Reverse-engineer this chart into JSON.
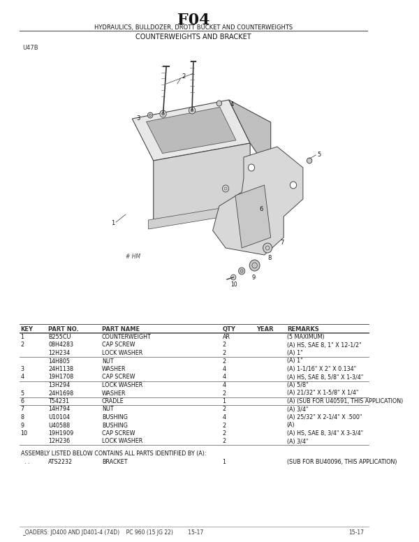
{
  "title": "F04",
  "subtitle": "HYDRAULICS, BULLDOZER, DROTT BUCKET AND COUNTERWEIGHTS",
  "section_title": "COUNTERWEIGHTS AND BRACKET",
  "figure_label": "U47B",
  "background_color": "#ffffff",
  "table_header": [
    "KEY",
    "PART NO.",
    "PART NAME",
    "QTY",
    "YEAR",
    "REMARKS"
  ],
  "table_rows": [
    [
      "1",
      "B255CU",
      "COUNTERWEIGHT",
      "AR",
      "",
      "(5 MAXIMUM)"
    ],
    [
      "2",
      "08H4283",
      "CAP SCREW",
      "2",
      "",
      "(A) HS, SAE 8, 1\" X 12-1/2\""
    ],
    [
      "",
      "12H234",
      "LOCK WASHER",
      "2",
      "",
      "(A) 1\""
    ],
    [
      "",
      "14H805",
      "NUT",
      "2",
      "",
      "(A) 1\""
    ],
    [
      "3",
      "24H1138",
      "WASHER",
      "4",
      "",
      "(A) 1-1/16\" X 2\" X 0.134\""
    ],
    [
      "4",
      "19H1708",
      "CAP SCREW",
      "4",
      "",
      "(A) HS, SAE 8, 5/8\" X 1-3/4\""
    ],
    [
      "",
      "13H294",
      "LOCK WASHER",
      "4",
      "",
      "(A) 5/8\""
    ],
    [
      "5",
      "24H1698",
      "WASHER",
      "2",
      "",
      "(A) 21/32\" X 1-5/8\" X 1/4\""
    ],
    [
      "6",
      "T54231",
      "CRADLE",
      "1",
      "",
      "(A) (SUB FOR U40591, THIS APPLICATION)"
    ],
    [
      "7",
      "14H794",
      "NUT",
      "2",
      "",
      "(A) 3/4\""
    ],
    [
      "8",
      "U10104",
      "BUSHING",
      "4",
      "",
      "(A) 25/32\" X 2-1/4\" X .500\""
    ],
    [
      "9",
      "U40588",
      "BUSHING",
      "2",
      "",
      "(A)"
    ],
    [
      "10",
      "19H1909",
      "CAP SCREW",
      "2",
      "",
      "(A) HS, SAE 8, 3/4\" X 3-3/4\""
    ],
    [
      "",
      "12H236",
      "LOCK WASHER",
      "2",
      "",
      "(A) 3/4\""
    ]
  ],
  "assembly_note": "ASSEMBLY LISTED BELOW CONTAINS ALL PARTS IDENTIFIED BY (A):",
  "assembly_rows": [
    [
      ". .",
      "ATS2232",
      "BRACKET",
      "1",
      "",
      "(SUB FOR BU40096, THIS APPLICATION)"
    ]
  ],
  "footer": "_OADERS: JD400 AND JD401-4 (74D)    PC 960 (15 JG 22)         15-17"
}
